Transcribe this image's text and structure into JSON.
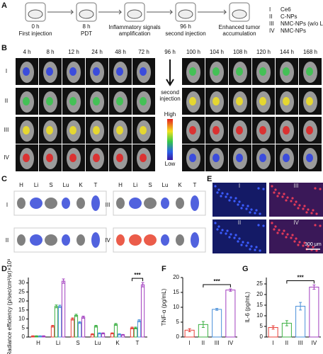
{
  "panel_labels": [
    "A",
    "B",
    "C",
    "D",
    "E",
    "F",
    "G"
  ],
  "timeline": [
    {
      "time": "0 h",
      "label": "First injection"
    },
    {
      "time": "8 h",
      "label": "PDT"
    },
    {
      "label": "Inflammatory signals amplification"
    },
    {
      "time": "96 h",
      "label": "second injection"
    },
    {
      "label": "Enhanced tumor accumulation"
    }
  ],
  "groups": [
    {
      "numeral": "I",
      "name": "Ce6"
    },
    {
      "numeral": "II",
      "name": "C-NPs"
    },
    {
      "numeral": "III",
      "name": "NMC-NPs (w/o L)"
    },
    {
      "numeral": "IV",
      "name": "NMC-NPs"
    }
  ],
  "imaging": {
    "times": [
      "4 h",
      "8 h",
      "12 h",
      "24 h",
      "48 h",
      "72 h",
      "96 h",
      "100 h",
      "104 h",
      "108 h",
      "120 h",
      "144 h",
      "168 h"
    ],
    "rows": [
      "I",
      "II",
      "III",
      "IV"
    ],
    "arrow_label": "second injection",
    "scale_high": "High",
    "scale_low": "Low"
  },
  "ex_vivo": {
    "organs": [
      "H",
      "Li",
      "S",
      "Lu",
      "K",
      "T"
    ],
    "groups": [
      "I",
      "III",
      "II",
      "IV"
    ]
  },
  "fluorescence": {
    "groups": [
      "I",
      "III",
      "II",
      "IV"
    ],
    "scale_bar": "300 μm"
  },
  "chart_data": [
    {
      "type": "bar",
      "ylabel": "Radiance efficiency (p/sec/cm²/sr)×10⁸",
      "categories": [
        "H",
        "Li",
        "S",
        "Lu",
        "K",
        "T"
      ],
      "series": [
        {
          "color": "#e8403a",
          "values": [
            0.5,
            6,
            10,
            1.5,
            2,
            5
          ],
          "errors": [
            0.2,
            0.5,
            0.6,
            0.3,
            0.3,
            0.5
          ]
        },
        {
          "color": "#3cb043",
          "values": [
            0.5,
            17,
            12,
            6,
            7,
            5
          ],
          "errors": [
            0.2,
            0.8,
            0.6,
            0.5,
            0.5,
            0.5
          ]
        },
        {
          "color": "#4a90d9",
          "values": [
            0.5,
            17,
            8,
            2,
            1.5,
            9
          ],
          "errors": [
            0.2,
            0.7,
            0.5,
            0.3,
            0.3,
            0.6
          ]
        },
        {
          "color": "#a23fbf",
          "values": [
            0.5,
            31,
            11,
            2,
            1.2,
            29
          ],
          "errors": [
            0.2,
            1.2,
            0.6,
            0.3,
            0.2,
            1.2
          ]
        }
      ],
      "ylim": [
        0,
        33
      ],
      "yticks": [
        0,
        5,
        10,
        15,
        20,
        25,
        30
      ],
      "annotation": "***"
    },
    {
      "type": "bar",
      "ylabel": "TNF-α (pg/mL)",
      "categories": [
        "I",
        "II",
        "III",
        "IV"
      ],
      "values": [
        2.3,
        4.2,
        9.3,
        15.8
      ],
      "errors": [
        0.5,
        1.0,
        0.3,
        0.4
      ],
      "colors": [
        "#e8403a",
        "#3cb043",
        "#4a90d9",
        "#a23fbf"
      ],
      "ylim": [
        0,
        20
      ],
      "yticks": [
        0,
        5,
        10,
        15,
        20
      ],
      "annotation": "***"
    },
    {
      "type": "bar",
      "ylabel": "IL-6 (pg/mL)",
      "categories": [
        "I",
        "II",
        "III",
        "IV"
      ],
      "values": [
        4.5,
        6.5,
        14.5,
        23.5
      ],
      "errors": [
        0.8,
        1.2,
        1.8,
        1.0
      ],
      "colors": [
        "#e8403a",
        "#3cb043",
        "#4a90d9",
        "#a23fbf"
      ],
      "ylim": [
        0,
        28
      ],
      "yticks": [
        0,
        5,
        10,
        15,
        20,
        25
      ],
      "annotation": "***"
    }
  ]
}
